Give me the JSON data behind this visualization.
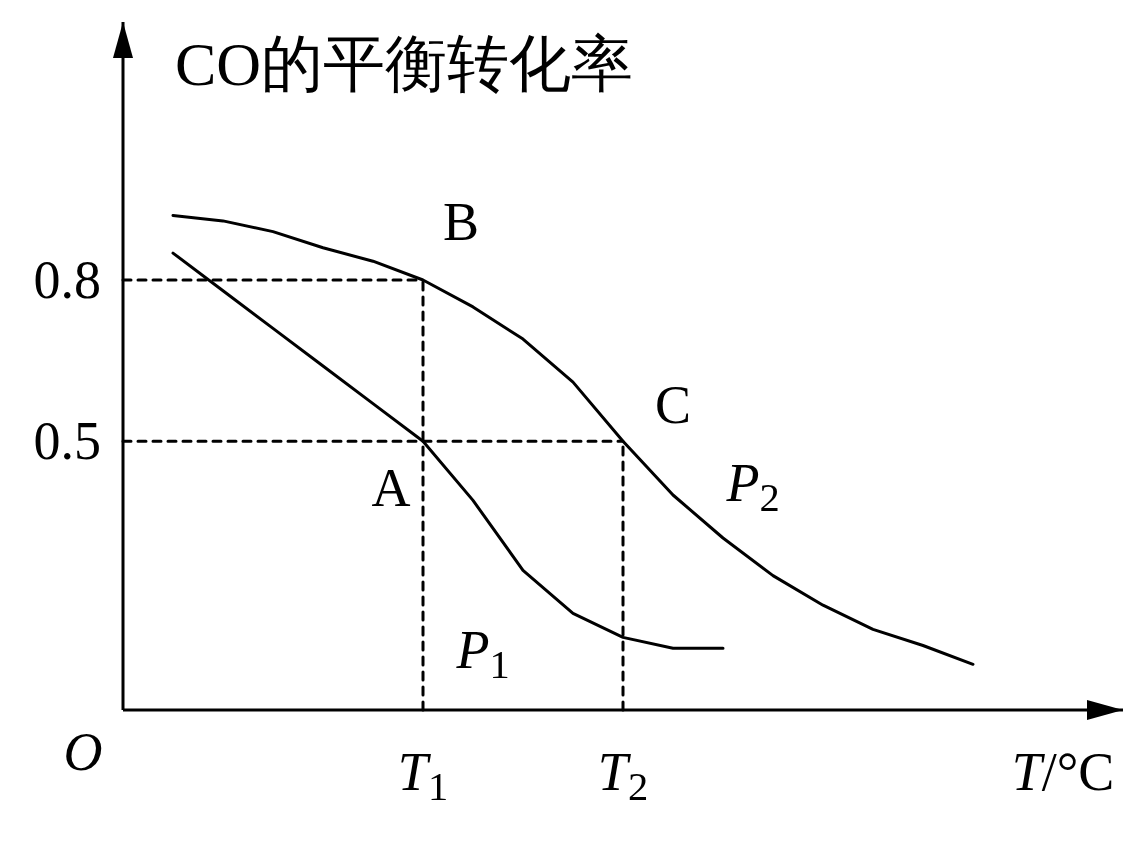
{
  "chart_data": {
    "type": "line",
    "ylabel": "CO的平衡转化率",
    "xlabel": "*T*/°C",
    "ylim": [
      0,
      1.28
    ],
    "yticks": [
      0.5,
      0.8
    ],
    "categories": [
      null,
      null,
      null,
      null,
      null,
      null,
      "*T*$_{1}$",
      null,
      null,
      null,
      "*T*$_{2}$",
      null,
      null,
      null,
      null,
      null,
      null,
      null,
      null,
      null
    ],
    "series": [
      {
        "name": "*P*$_{1}$",
        "color": "#000000",
        "values": [
          null,
          0.85,
          0.78,
          0.71,
          0.64,
          0.57,
          0.5,
          0.39,
          0.26,
          0.18,
          0.135,
          0.115,
          0.115,
          null,
          null,
          null,
          null,
          null,
          null,
          null
        ]
      },
      {
        "name": "*P*$_{2}$",
        "color": "#000000",
        "values": [
          null,
          0.92,
          0.91,
          0.89,
          0.86,
          0.835,
          0.8,
          0.75,
          0.69,
          0.61,
          0.5,
          0.4,
          0.32,
          0.25,
          0.195,
          0.15,
          0.12,
          0.085,
          null,
          null
        ]
      }
    ],
    "ref_lines": [
      {
        "axis": "y",
        "value": 0.8,
        "color": "#000000",
        "line_style": "dashed"
      },
      {
        "axis": "y",
        "value": 0.5,
        "color": "#000000",
        "line_style": "dashed"
      },
      {
        "axis": "x",
        "value": "*T*$_{1}$",
        "color": "#000000",
        "line_style": "dashed"
      },
      {
        "axis": "x",
        "value": "*T*$_{2}$",
        "color": "#000000",
        "line_style": "dashed"
      }
    ],
    "annotations": [
      {
        "text": "A",
        "x": "*T*$_{1}$",
        "y": 0.5
      },
      {
        "text": "B",
        "x": "*T*$_{1}$",
        "y": 0.8
      },
      {
        "text": "C",
        "x": "*T*$_{2}$",
        "y": 0.5
      },
      "*O*"
    ]
  }
}
